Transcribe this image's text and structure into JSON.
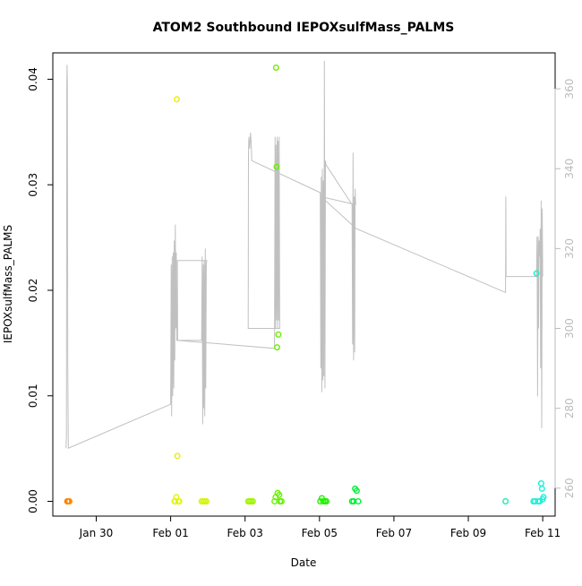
{
  "chart_data": {
    "type": "scatter",
    "title": "ATOM2 Southbound IEPOXsulfMass_PALMS",
    "xlabel": "Date",
    "ylabel": "IEPOXsulfMass_PALMS",
    "x_ticks": [
      "Jan 30",
      "Feb 01",
      "Feb 03",
      "Feb 05",
      "Feb 07",
      "Feb 09",
      "Feb 11"
    ],
    "xlim": [
      "2017-01-28T20:00",
      "2017-02-11T08:00"
    ],
    "ylim": [
      -0.0014,
      0.0425
    ],
    "y_ticks": [
      "0.00",
      "0.01",
      "0.02",
      "0.03",
      "0.04"
    ],
    "y2_ticks": [
      "260",
      "280",
      "300",
      "320",
      "340",
      "360"
    ],
    "y2lim": [
      253,
      369
    ],
    "colors": {
      "axis": "#000000",
      "altitude_line": "#c0c0c0",
      "altitude_ticks": "#bbbbbb"
    },
    "points": [
      {
        "x": "2017-01-29T05:20",
        "y": 0.0,
        "c": "#FF7000"
      },
      {
        "x": "2017-01-29T05:40",
        "y": 0.0,
        "c": "#FF7A00"
      },
      {
        "x": "2017-01-29T06:00",
        "y": 0.0,
        "c": "#FF8200"
      },
      {
        "x": "2017-01-29T06:20",
        "y": 0.0,
        "c": "#FF8A00"
      },
      {
        "x": "2017-01-29T06:40",
        "y": 0.0,
        "c": "#FF9000"
      },
      {
        "x": "2017-02-01T02:30",
        "y": 0.0,
        "c": "#E8F500"
      },
      {
        "x": "2017-02-01T03:00",
        "y": 0.0,
        "c": "#E6F500"
      },
      {
        "x": "2017-02-01T03:40",
        "y": 0.0004,
        "c": "#E4F500"
      },
      {
        "x": "2017-02-01T04:00",
        "y": 0.0381,
        "c": "#E8F200"
      },
      {
        "x": "2017-02-01T04:20",
        "y": 0.0043,
        "c": "#E4F000"
      },
      {
        "x": "2017-02-01T05:00",
        "y": 0.0,
        "c": "#E2F500"
      },
      {
        "x": "2017-02-01T05:30",
        "y": 0.0,
        "c": "#E0F500"
      },
      {
        "x": "2017-02-01T20:00",
        "y": 0.0,
        "c": "#D8F500"
      },
      {
        "x": "2017-02-01T21:00",
        "y": 0.0,
        "c": "#D6F500"
      },
      {
        "x": "2017-02-01T22:00",
        "y": 0.0,
        "c": "#D4F500"
      },
      {
        "x": "2017-02-01T23:00",
        "y": 0.0,
        "c": "#D2F500"
      },
      {
        "x": "2017-02-03T02:00",
        "y": 0.0,
        "c": "#A4F500"
      },
      {
        "x": "2017-02-03T03:00",
        "y": 0.0,
        "c": "#A2F500"
      },
      {
        "x": "2017-02-03T04:00",
        "y": 0.0,
        "c": "#A0F500"
      },
      {
        "x": "2017-02-03T05:00",
        "y": 0.0,
        "c": "#9EF500"
      },
      {
        "x": "2017-02-03T19:00",
        "y": 0.0,
        "c": "#6CF200"
      },
      {
        "x": "2017-02-03T19:40",
        "y": 0.0004,
        "c": "#6CF200"
      },
      {
        "x": "2017-02-03T20:00",
        "y": 0.0411,
        "c": "#6CF000"
      },
      {
        "x": "2017-02-03T20:20",
        "y": 0.0317,
        "c": "#6AF000"
      },
      {
        "x": "2017-02-03T20:40",
        "y": 0.0146,
        "c": "#6AF000"
      },
      {
        "x": "2017-02-03T21:00",
        "y": 0.0008,
        "c": "#68F000"
      },
      {
        "x": "2017-02-03T21:30",
        "y": 0.0158,
        "c": "#68F000"
      },
      {
        "x": "2017-02-03T22:00",
        "y": 0.0006,
        "c": "#66F000"
      },
      {
        "x": "2017-02-03T22:30",
        "y": 0.0,
        "c": "#64F000"
      },
      {
        "x": "2017-02-03T23:30",
        "y": 0.0,
        "c": "#62F000"
      },
      {
        "x": "2017-02-05T00:30",
        "y": 0.0,
        "c": "#26F000"
      },
      {
        "x": "2017-02-05T01:30",
        "y": 0.0003,
        "c": "#24F000"
      },
      {
        "x": "2017-02-05T02:30",
        "y": 0.0,
        "c": "#22F000"
      },
      {
        "x": "2017-02-05T03:30",
        "y": 0.0,
        "c": "#20F000"
      },
      {
        "x": "2017-02-05T04:30",
        "y": 0.0,
        "c": "#1EF000"
      },
      {
        "x": "2017-02-05T21:00",
        "y": 0.0,
        "c": "#00F030"
      },
      {
        "x": "2017-02-05T22:00",
        "y": 0.0,
        "c": "#00F032"
      },
      {
        "x": "2017-02-05T23:00",
        "y": 0.0012,
        "c": "#00F034"
      },
      {
        "x": "2017-02-06T00:00",
        "y": 0.001,
        "c": "#00F036"
      },
      {
        "x": "2017-02-06T01:00",
        "y": 0.0,
        "c": "#00F038"
      },
      {
        "x": "2017-02-10T00:00",
        "y": 0.0,
        "c": "#10F0B0"
      },
      {
        "x": "2017-02-10T18:00",
        "y": 0.0,
        "c": "#18F0D0"
      },
      {
        "x": "2017-02-10T19:00",
        "y": 0.0,
        "c": "#18F0D2"
      },
      {
        "x": "2017-02-10T20:00",
        "y": 0.0216,
        "c": "#18F0C8"
      },
      {
        "x": "2017-02-10T21:00",
        "y": 0.0,
        "c": "#18F0D4"
      },
      {
        "x": "2017-02-10T22:00",
        "y": 0.0,
        "c": "#18F0D6"
      },
      {
        "x": "2017-02-10T23:00",
        "y": 0.0017,
        "c": "#18F0D8"
      },
      {
        "x": "2017-02-10T23:30",
        "y": 0.0012,
        "c": "#18F0DA"
      },
      {
        "x": "2017-02-11T00:00",
        "y": 0.0002,
        "c": "#18F0DC"
      },
      {
        "x": "2017-02-11T00:30",
        "y": 0.0004,
        "c": "#18F0DE"
      }
    ],
    "altitude_line": [
      [
        "2017-01-29T04:30",
        270
      ],
      [
        "2017-01-29T04:45",
        273
      ],
      [
        "2017-01-29T05:00",
        360
      ],
      [
        "2017-01-29T05:10",
        366
      ],
      [
        "2017-01-29T05:20",
        362
      ],
      [
        "2017-01-29T05:40",
        290
      ],
      [
        "2017-01-29T06:00",
        270
      ],
      [
        "2017-02-01T00:00",
        281
      ],
      [
        "2017-02-01T00:20",
        316
      ],
      [
        "2017-02-01T00:40",
        278
      ],
      [
        "2017-02-01T01:00",
        318
      ],
      [
        "2017-02-01T01:20",
        283
      ],
      [
        "2017-02-01T01:40",
        319
      ],
      [
        "2017-02-01T02:00",
        285
      ],
      [
        "2017-02-01T02:20",
        322
      ],
      [
        "2017-02-01T02:40",
        292
      ],
      [
        "2017-02-01T03:00",
        326
      ],
      [
        "2017-02-01T03:20",
        300
      ],
      [
        "2017-02-01T03:40",
        319
      ],
      [
        "2017-02-01T04:00",
        297
      ],
      [
        "2017-02-01T20:00",
        297
      ],
      [
        "2017-02-01T20:20",
        318
      ],
      [
        "2017-02-01T20:40",
        276
      ],
      [
        "2017-02-01T21:00",
        316
      ],
      [
        "2017-02-01T21:20",
        280
      ],
      [
        "2017-02-01T21:40",
        317
      ],
      [
        "2017-02-01T22:00",
        278
      ],
      [
        "2017-02-01T22:20",
        320
      ],
      [
        "2017-02-01T22:40",
        285
      ],
      [
        "2017-02-01T23:00",
        316
      ],
      [
        "2017-02-01T23:20",
        317
      ],
      [
        "2017-02-01T04:20",
        317
      ],
      [
        "2017-02-01T04:30",
        297
      ],
      [
        "2017-02-03T19:00",
        295
      ],
      [
        "2017-02-03T19:20",
        348
      ],
      [
        "2017-02-03T19:40",
        300
      ],
      [
        "2017-02-03T20:00",
        346
      ],
      [
        "2017-02-03T20:20",
        302
      ],
      [
        "2017-02-03T20:40",
        348
      ],
      [
        "2017-02-03T21:00",
        300
      ],
      [
        "2017-02-03T21:20",
        347
      ],
      [
        "2017-02-03T21:40",
        302
      ],
      [
        "2017-02-03T22:00",
        348
      ],
      [
        "2017-02-03T22:20",
        300
      ],
      [
        "2017-02-03T02:00",
        300
      ],
      [
        "2017-02-03T02:10",
        344
      ],
      [
        "2017-02-03T02:30",
        348
      ],
      [
        "2017-02-03T03:00",
        345
      ],
      [
        "2017-02-03T03:30",
        349
      ],
      [
        "2017-02-03T04:00",
        346
      ],
      [
        "2017-02-03T04:20",
        342
      ],
      [
        "2017-02-05T00:30",
        334
      ],
      [
        "2017-02-05T00:50",
        290
      ],
      [
        "2017-02-05T01:10",
        338
      ],
      [
        "2017-02-05T01:30",
        284
      ],
      [
        "2017-02-05T01:50",
        340
      ],
      [
        "2017-02-05T02:10",
        287
      ],
      [
        "2017-02-05T02:30",
        337
      ],
      [
        "2017-02-05T02:50",
        288
      ],
      [
        "2017-02-05T03:10",
        367
      ],
      [
        "2017-02-05T03:30",
        285
      ],
      [
        "2017-02-05T03:50",
        342
      ],
      [
        "2017-02-05T04:10",
        341
      ],
      [
        "2017-02-05T21:00",
        331
      ],
      [
        "2017-02-05T21:20",
        296
      ],
      [
        "2017-02-05T21:40",
        344
      ],
      [
        "2017-02-05T22:00",
        292
      ],
      [
        "2017-02-05T22:20",
        333
      ],
      [
        "2017-02-05T22:40",
        294
      ],
      [
        "2017-02-05T23:00",
        335
      ],
      [
        "2017-02-05T23:20",
        331
      ],
      [
        "2017-02-05T00:40",
        333
      ],
      [
        "2017-02-05T01:00",
        333
      ],
      [
        "2017-02-05T23:40",
        325
      ],
      [
        "2017-02-10T00:00",
        309
      ],
      [
        "2017-02-10T00:10",
        333
      ],
      [
        "2017-02-10T00:20",
        313
      ],
      [
        "2017-02-10T20:00",
        313
      ],
      [
        "2017-02-10T20:20",
        323
      ],
      [
        "2017-02-10T20:40",
        283
      ],
      [
        "2017-02-10T21:00",
        323
      ],
      [
        "2017-02-10T21:20",
        300
      ],
      [
        "2017-02-10T21:40",
        322
      ],
      [
        "2017-02-10T22:00",
        318
      ],
      [
        "2017-02-10T22:20",
        325
      ],
      [
        "2017-02-10T22:40",
        290
      ],
      [
        "2017-02-10T23:00",
        332
      ],
      [
        "2017-02-10T23:20",
        275
      ],
      [
        "2017-02-10T23:40",
        330
      ],
      [
        "2017-02-11T00:00",
        313
      ]
    ]
  }
}
